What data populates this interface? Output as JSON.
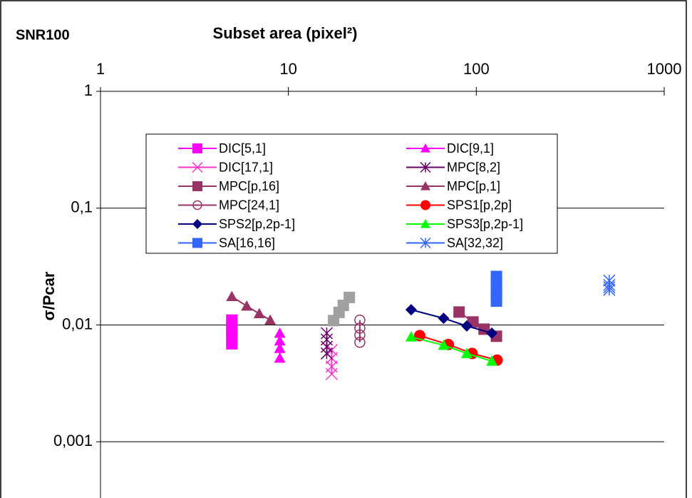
{
  "chart_data": {
    "type": "scatter",
    "title": "SNR100",
    "x_label": "Subset area (pixel²)",
    "y_label": "σ/Pcar",
    "x_scale": "log",
    "y_scale": "log",
    "grid": true,
    "xlim": [
      1,
      1000
    ],
    "xticks": [
      1,
      10,
      100,
      1000
    ],
    "ylim": [
      0.00033,
      1
    ],
    "yticks": [
      {
        "value": 0.001,
        "label": "0,001"
      },
      {
        "value": 0.01,
        "label": "0,01"
      },
      {
        "value": 0.1,
        "label": "0,1"
      },
      1
    ],
    "series": [
      {
        "name": "DIC[5,1]",
        "color": "#ff00ff",
        "marker": "square",
        "x": [
          5,
          5,
          5,
          5,
          5
        ],
        "values": [
          0.011,
          0.0097,
          0.0087,
          0.0078,
          0.0069
        ]
      },
      {
        "name": "DIC[9,1]",
        "color": "#ff00ff",
        "marker": "triangle",
        "x": [
          9,
          9,
          9,
          9
        ],
        "values": [
          0.0085,
          0.0073,
          0.0063,
          0.0052
        ]
      },
      {
        "name": "DIC[17,1]",
        "color": "#ff33cc",
        "marker": "x",
        "x": [
          17,
          17,
          17,
          17
        ],
        "values": [
          0.0061,
          0.0052,
          0.0044,
          0.0038
        ]
      },
      {
        "name": "MPC[8,2]",
        "color": "#660066",
        "marker": "asterisk",
        "x": [
          16,
          16,
          16,
          16
        ],
        "values": [
          0.0085,
          0.0075,
          0.0065,
          0.0057
        ]
      },
      {
        "name": "MPC[p,16]",
        "color": "#993366",
        "marker": "square",
        "x": [
          81,
          96,
          110,
          128
        ],
        "values": [
          0.0129,
          0.0106,
          0.0092,
          0.008
        ]
      },
      {
        "name": "MPC[p,1]",
        "color": "#993366",
        "marker": "triangle",
        "x": [
          5,
          6,
          7,
          8
        ],
        "values": [
          0.0175,
          0.0145,
          0.0125,
          0.011
        ]
      },
      {
        "name": "MPC[24,1]",
        "color": "#993366",
        "marker": "circle-open",
        "x": [
          24,
          24,
          24,
          24
        ],
        "values": [
          0.011,
          0.0094,
          0.0082,
          0.0071
        ]
      },
      {
        "name": "SPS1[p,2p]",
        "color": "#ff0000",
        "marker": "circle",
        "x": [
          50,
          71,
          95,
          129
        ],
        "values": [
          0.0081,
          0.0068,
          0.0057,
          0.005
        ]
      },
      {
        "name": "SPS2[p,2p-1]",
        "color": "#000080",
        "marker": "diamond",
        "x": [
          45,
          67,
          89,
          121
        ],
        "values": [
          0.0135,
          0.0114,
          0.0098,
          0.0085
        ]
      },
      {
        "name": "SPS3[p,2p-1]",
        "color": "#00ff00",
        "marker": "triangle",
        "x": [
          45,
          67,
          89,
          121
        ],
        "values": [
          0.0079,
          0.0067,
          0.0057,
          0.0049
        ]
      },
      {
        "name": "SA[16,16]",
        "color": "#3366ff",
        "marker": "square",
        "x": [
          128,
          128,
          128,
          128,
          128
        ],
        "values": [
          0.026,
          0.023,
          0.02,
          0.018,
          0.016
        ]
      },
      {
        "name": "SA[32,32]",
        "color": "#3366ff",
        "marker": "asterisk",
        "x": [
          510,
          510,
          510,
          510
        ],
        "values": [
          0.024,
          0.022,
          0.021,
          0.02
        ]
      },
      {
        "color": "#a0a0a0",
        "marker": "square",
        "x": [
          17.4,
          18.6,
          19.6,
          21.1
        ],
        "values": [
          0.0109,
          0.0128,
          0.0147,
          0.0172
        ]
      }
    ]
  }
}
